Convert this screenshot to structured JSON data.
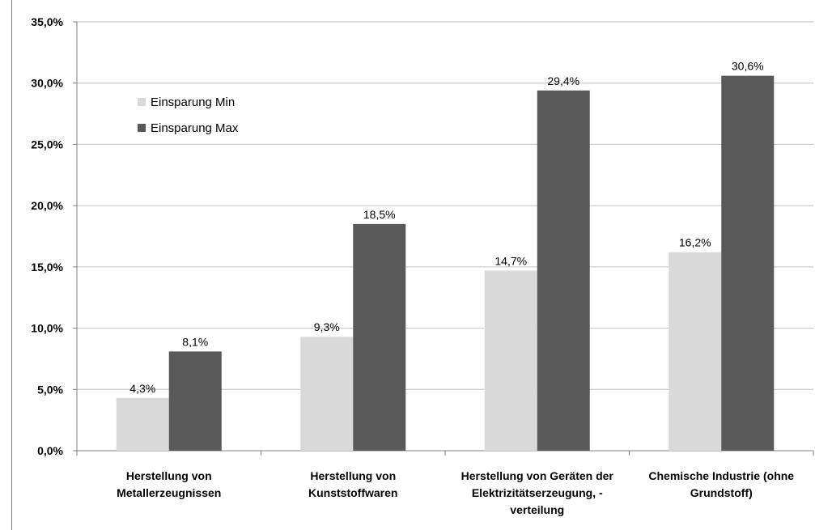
{
  "chart_data": {
    "type": "bar",
    "title": "",
    "xlabel": "",
    "ylabel": "",
    "ylim": [
      0,
      35
    ],
    "grid": true,
    "legend_position": "upper-left-inside",
    "categories": [
      [
        "Herstellung von",
        "Metallerzeugnissen"
      ],
      [
        "Herstellung von",
        "Kunststoffwaren"
      ],
      [
        "Herstellung von Geräten der",
        "Elektrizitätserzeugung, -",
        "verteilung"
      ],
      [
        "Chemische Industrie (ohne",
        "Grundstoff)"
      ]
    ],
    "y_ticks": [
      "0,0%",
      "5,0%",
      "10,0%",
      "15,0%",
      "20,0%",
      "25,0%",
      "30,0%",
      "35,0%"
    ],
    "series": [
      {
        "name": "Einsparung Min",
        "color": "#d9d9d9",
        "values": [
          4.3,
          9.3,
          14.7,
          16.2
        ],
        "labels": [
          "4,3%",
          "9,3%",
          "14,7%",
          "16,2%"
        ]
      },
      {
        "name": "Einsparung Max",
        "color": "#595959",
        "values": [
          8.1,
          18.5,
          29.4,
          30.6
        ],
        "labels": [
          "8,1%",
          "18,5%",
          "29,4%",
          "30,6%"
        ]
      }
    ]
  }
}
